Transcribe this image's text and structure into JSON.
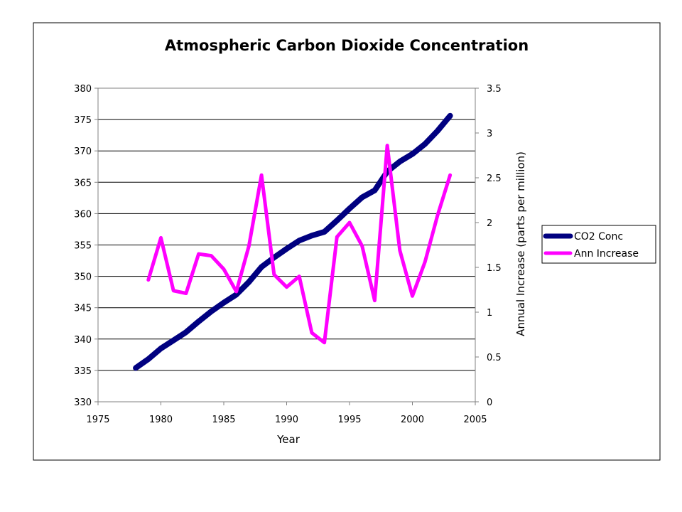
{
  "chart_data": {
    "type": "line",
    "title": "Atmospheric Carbon Dioxide Concentration",
    "xlabel": "Year",
    "ylabel": "",
    "y2label": "Annual Increase (parts per million)",
    "xlim": [
      1975,
      2005
    ],
    "ylim": [
      330,
      380
    ],
    "y2lim": [
      0,
      3.5
    ],
    "x_ticks": [
      "1975",
      "1980",
      "1985",
      "1990",
      "1995",
      "2000",
      "2005"
    ],
    "y_ticks": [
      "330",
      "335",
      "340",
      "345",
      "350",
      "355",
      "360",
      "365",
      "370",
      "375",
      "380"
    ],
    "y2_ticks": [
      "0",
      "0.5",
      "1",
      "1.5",
      "2",
      "2.5",
      "3",
      "3.5"
    ],
    "grid": "horizontal major gridlines",
    "legend_position": "right",
    "series": [
      {
        "name": "CO2 Conc",
        "axis": "left",
        "color": "#000080",
        "x": [
          1978,
          1979,
          1980,
          1981,
          1982,
          1983,
          1984,
          1985,
          1986,
          1987,
          1988,
          1989,
          1990,
          1991,
          1992,
          1993,
          1994,
          1995,
          1996,
          1997,
          1998,
          1999,
          2000,
          2001,
          2002,
          2003
        ],
        "values": [
          335.4,
          336.8,
          338.5,
          339.8,
          341.1,
          342.8,
          344.4,
          345.8,
          347.1,
          349.1,
          351.5,
          353.0,
          354.4,
          355.7,
          356.5,
          357.1,
          358.9,
          360.8,
          362.6,
          363.7,
          366.7,
          368.3,
          369.5,
          371.1,
          373.2,
          375.6
        ]
      },
      {
        "name": "Ann Increase",
        "axis": "right",
        "color": "#FF00FF",
        "x": [
          1979,
          1980,
          1981,
          1982,
          1983,
          1984,
          1985,
          1986,
          1987,
          1988,
          1989,
          1990,
          1991,
          1992,
          1993,
          1994,
          1995,
          1996,
          1997,
          1998,
          1999,
          2000,
          2001,
          2002,
          2003
        ],
        "values": [
          1.36,
          1.83,
          1.24,
          1.21,
          1.65,
          1.63,
          1.48,
          1.23,
          1.74,
          2.53,
          1.42,
          1.28,
          1.4,
          0.77,
          0.66,
          1.84,
          2.0,
          1.74,
          1.13,
          2.86,
          1.69,
          1.18,
          1.56,
          2.08,
          2.53
        ]
      }
    ]
  }
}
